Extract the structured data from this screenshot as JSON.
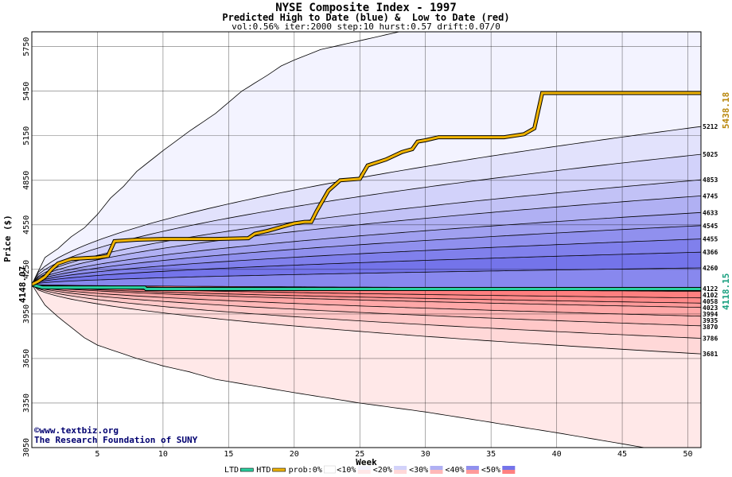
{
  "chart_data": {
    "type": "area",
    "title": "NYSE Composite Index - 1997",
    "subtitle": "Predicted High to Date (blue) &  Low to Date (red)",
    "params": "vol:0.56% iter:2000 step:10 hurst:0.57 drift:0.07/0",
    "xlabel": "Week",
    "ylabel": "Price ($)",
    "xlim": [
      0,
      51
    ],
    "ylim": [
      3050,
      5850
    ],
    "x_ticks": [
      5,
      10,
      15,
      20,
      25,
      30,
      35,
      40,
      45,
      50
    ],
    "y_ticks": [
      3050,
      3350,
      3650,
      3950,
      4250,
      4550,
      4850,
      5150,
      5450,
      5750
    ],
    "grid": true,
    "start_price": 4148.07,
    "start_label": "4148.07",
    "htd_label": "5438.18",
    "ltd_label": "4118.15",
    "legend": {
      "position": "bottom",
      "items": [
        "LTD",
        "HTD",
        "prob:0%",
        "<10%",
        "<20%",
        "<30%",
        "<40%",
        "<50%"
      ]
    },
    "high_quantiles": [
      {
        "end": 5212,
        "label": "5212"
      },
      {
        "end": 5025,
        "label": "5025"
      },
      {
        "end": 4853,
        "label": "4853"
      },
      {
        "end": 4745,
        "label": "4745"
      },
      {
        "end": 4633,
        "label": "4633"
      },
      {
        "end": 4545,
        "label": "4545"
      },
      {
        "end": 4455,
        "label": "4455"
      },
      {
        "end": 4366,
        "label": "4366"
      },
      {
        "end": 4260,
        "label": "4260"
      },
      {
        "end": 4122,
        "label": "4122"
      }
    ],
    "low_quantiles": [
      {
        "end": 4102,
        "label": "4102"
      },
      {
        "end": 4058,
        "label": "4058"
      },
      {
        "end": 4023,
        "label": "4023"
      },
      {
        "end": 3994,
        "label": "3994"
      },
      {
        "end": 3935,
        "label": "3935"
      },
      {
        "end": 3870,
        "label": "3870"
      },
      {
        "end": 3786,
        "label": "3786"
      },
      {
        "end": 3681,
        "label": "3681"
      }
    ],
    "envelope_high": [
      [
        0,
        4148
      ],
      [
        1,
        4330
      ],
      [
        2,
        4390
      ],
      [
        3,
        4470
      ],
      [
        4,
        4530
      ],
      [
        5,
        4620
      ],
      [
        6,
        4730
      ],
      [
        7,
        4810
      ],
      [
        8,
        4910
      ],
      [
        9,
        4980
      ],
      [
        10,
        5050
      ],
      [
        12,
        5180
      ],
      [
        14,
        5300
      ],
      [
        16,
        5450
      ],
      [
        18,
        5560
      ],
      [
        19,
        5620
      ],
      [
        20,
        5660
      ],
      [
        22,
        5730
      ],
      [
        25,
        5790
      ],
      [
        28,
        5850
      ]
    ],
    "envelope_low": [
      [
        0,
        4148
      ],
      [
        1,
        4010
      ],
      [
        2,
        3930
      ],
      [
        3,
        3860
      ],
      [
        4,
        3790
      ],
      [
        5,
        3740
      ],
      [
        6,
        3710
      ],
      [
        8,
        3650
      ],
      [
        10,
        3600
      ],
      [
        12,
        3560
      ],
      [
        14,
        3510
      ],
      [
        16,
        3480
      ],
      [
        18,
        3450
      ],
      [
        20,
        3420
      ],
      [
        25,
        3350
      ],
      [
        30,
        3290
      ],
      [
        35,
        3220
      ],
      [
        40,
        3150
      ],
      [
        46,
        3060
      ]
    ],
    "htd": [
      [
        0,
        4148
      ],
      [
        0.5,
        4170
      ],
      [
        1,
        4200
      ],
      [
        1.5,
        4250
      ],
      [
        2,
        4290
      ],
      [
        3,
        4320
      ],
      [
        4,
        4325
      ],
      [
        5,
        4330
      ],
      [
        5.8,
        4340
      ],
      [
        6.3,
        4440
      ],
      [
        8,
        4450
      ],
      [
        10,
        4455
      ],
      [
        14,
        4455
      ],
      [
        16.5,
        4460
      ],
      [
        17,
        4490
      ],
      [
        18,
        4510
      ],
      [
        19,
        4535
      ],
      [
        20,
        4560
      ],
      [
        20.8,
        4570
      ],
      [
        21.3,
        4570
      ],
      [
        21.7,
        4640
      ],
      [
        22.6,
        4780
      ],
      [
        23.5,
        4850
      ],
      [
        25,
        4860
      ],
      [
        25.6,
        4950
      ],
      [
        27,
        4990
      ],
      [
        28.2,
        5040
      ],
      [
        29,
        5060
      ],
      [
        29.4,
        5110
      ],
      [
        30,
        5120
      ],
      [
        31,
        5140
      ],
      [
        36,
        5140
      ],
      [
        37.5,
        5160
      ],
      [
        38.3,
        5200
      ],
      [
        38.9,
        5438
      ],
      [
        51,
        5438
      ]
    ],
    "ltd": [
      [
        0,
        4148
      ],
      [
        0.8,
        4128
      ],
      [
        8.6,
        4128
      ],
      [
        8.7,
        4118
      ],
      [
        51,
        4118
      ]
    ]
  }
}
